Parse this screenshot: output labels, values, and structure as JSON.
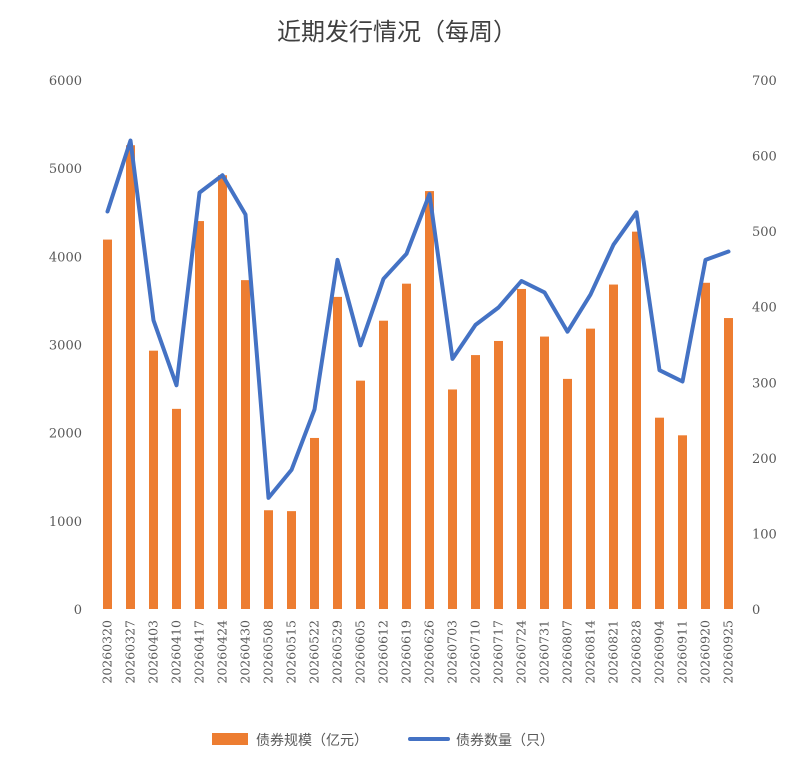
{
  "chart_data": {
    "type": "bar",
    "title": "近期发行情况（每周）",
    "categories": [
      "20260320",
      "20260327",
      "20260403",
      "20260410",
      "20260417",
      "20260424",
      "20260430",
      "20260508",
      "20260515",
      "20260522",
      "20260529",
      "20260605",
      "20260612",
      "20260619",
      "20260626",
      "20260703",
      "20260710",
      "20260717",
      "20260724",
      "20260731",
      "20260807",
      "20260814",
      "20260821",
      "20260828",
      "20260904",
      "20260911",
      "20260920",
      "20260925"
    ],
    "series": [
      {
        "name": "债券规模（亿元）",
        "type": "bar",
        "axis": "left",
        "color": "#ED7D31",
        "values": [
          4190,
          5260,
          2930,
          2270,
          4400,
          4920,
          3730,
          1120,
          1110,
          1940,
          3540,
          2590,
          3270,
          3690,
          4740,
          2490,
          2880,
          3040,
          3630,
          3090,
          2610,
          3180,
          3680,
          4280,
          2170,
          1970,
          3700,
          3300
        ]
      },
      {
        "name": "债券数量（只）",
        "type": "line",
        "axis": "right",
        "color": "#4472C4",
        "values": [
          526,
          620,
          382,
          296,
          551,
          574,
          522,
          147,
          184,
          264,
          462,
          349,
          437,
          470,
          549,
          331,
          376,
          399,
          434,
          419,
          367,
          416,
          482,
          525,
          316,
          301,
          462,
          473
        ]
      }
    ],
    "y_left": {
      "min": 0,
      "max": 6000,
      "ticks": [
        "0",
        "1000",
        "2000",
        "3000",
        "4000",
        "5000",
        "6000"
      ]
    },
    "y_right": {
      "min": 0,
      "max": 700,
      "ticks": [
        "0",
        "100",
        "200",
        "300",
        "400",
        "500",
        "600",
        "700"
      ]
    },
    "legend_position": "bottom",
    "grid": false
  }
}
